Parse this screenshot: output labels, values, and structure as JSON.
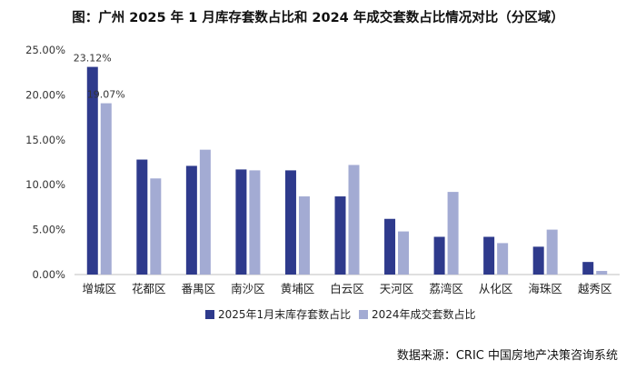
{
  "title": "图：广州 2025 年 1 月库存套数占比和 2024 年成交套数占比情况对比（分区域）",
  "source": "数据来源：CRIC 中国房地产决策咨询系统",
  "chart_data": {
    "type": "bar",
    "categories": [
      "增城区",
      "花都区",
      "番禺区",
      "南沙区",
      "黄埔区",
      "白云区",
      "天河区",
      "荔湾区",
      "从化区",
      "海珠区",
      "越秀区"
    ],
    "series": [
      {
        "name": "2025年1月末库存套数占比",
        "color": "#2e3a8c",
        "values": [
          23.12,
          12.8,
          12.1,
          11.7,
          11.6,
          8.7,
          6.2,
          4.2,
          4.2,
          3.1,
          1.4
        ]
      },
      {
        "name": "2024年成交套数占比",
        "color": "#a3abd3",
        "values": [
          19.07,
          10.7,
          13.9,
          11.6,
          8.7,
          12.2,
          4.8,
          9.2,
          3.5,
          5.0,
          0.4
        ]
      }
    ],
    "data_labels": [
      {
        "series": 0,
        "index": 0,
        "text": "23.12%"
      },
      {
        "series": 1,
        "index": 0,
        "text": "19.07%"
      }
    ],
    "yticks": [
      "0.00%",
      "5.00%",
      "10.00%",
      "15.00%",
      "20.00%",
      "25.00%"
    ],
    "ylim": [
      0,
      25
    ],
    "grid": false,
    "legend_position": "bottom"
  }
}
